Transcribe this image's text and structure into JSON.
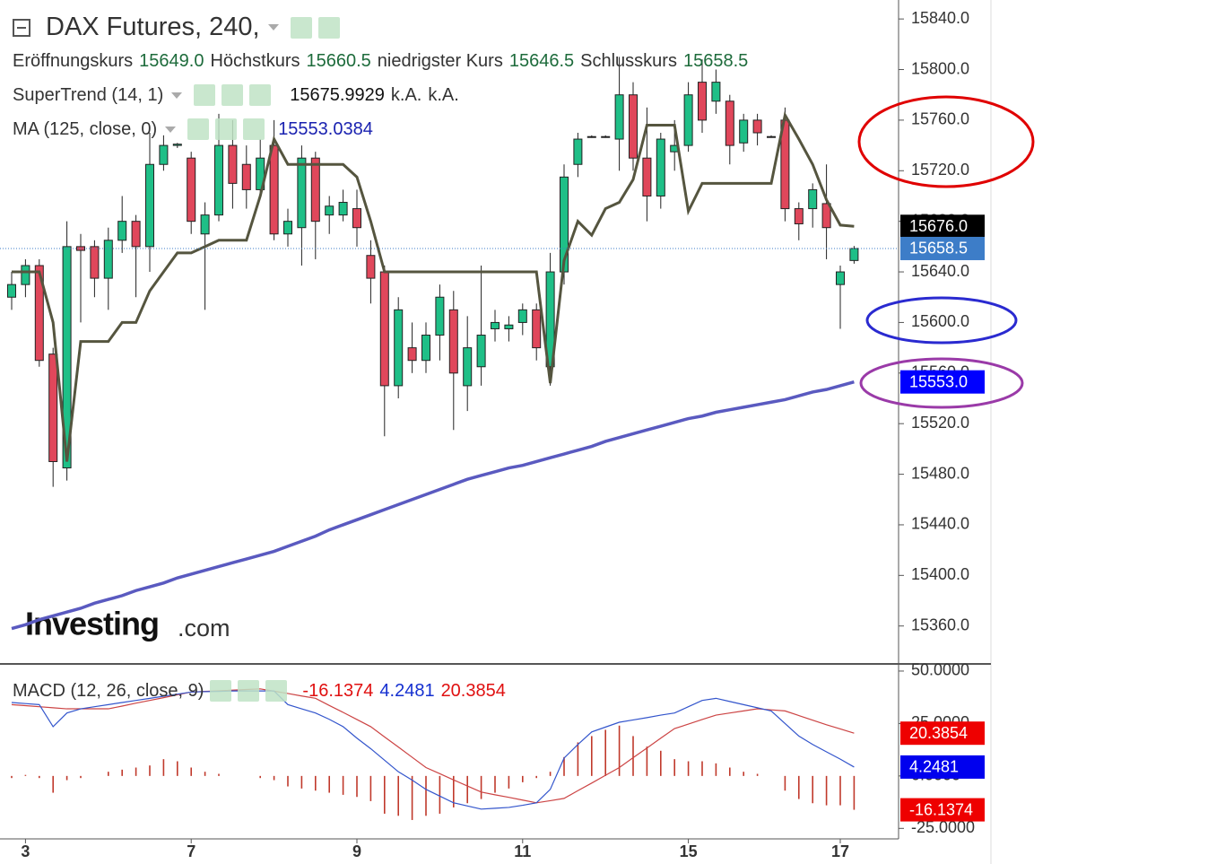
{
  "chart_data": [
    {
      "type": "candlestick",
      "title": "DAX Futures, 240,",
      "ohlc_legend": [
        {
          "label": "Eröffnungskurs",
          "value": "15649.0"
        },
        {
          "label": "Höchstkurs",
          "value": "15660.5"
        },
        {
          "label": "niedrigster Kurs",
          "value": "15646.5"
        },
        {
          "label": "Schlusskurs",
          "value": "15658.5"
        }
      ],
      "logo": [
        "Investing",
        ".com"
      ],
      "categories": [
        null,
        "3",
        null,
        null,
        null,
        null,
        null,
        null,
        null,
        null,
        null,
        null,
        null,
        "7",
        null,
        null,
        null,
        null,
        null,
        null,
        null,
        null,
        null,
        null,
        null,
        "9",
        null,
        null,
        null,
        null,
        null,
        null,
        null,
        null,
        null,
        null,
        null,
        "11",
        null,
        null,
        null,
        null,
        null,
        null,
        null,
        null,
        null,
        null,
        null,
        "15",
        null,
        null,
        null,
        null,
        null,
        null,
        null,
        null,
        null,
        null,
        "17",
        null
      ],
      "ohlc": {
        "up_color": "#1fbf87",
        "down_color": "#e0475b",
        "open": [
          15620,
          15630,
          15645,
          15575,
          15485,
          15660,
          15660,
          15635,
          15665,
          15680,
          15660,
          15725,
          15740,
          15730,
          15670,
          15685,
          15740,
          15725,
          15705,
          15740,
          15670,
          15675,
          15730,
          15685,
          15685,
          15690,
          15653,
          15640,
          15550,
          15580,
          15570,
          15590,
          15610,
          15550,
          15565,
          15595,
          15595,
          15600,
          15610,
          15565,
          15640,
          15725,
          15747,
          15747,
          15745,
          15780,
          15730,
          15700,
          15735,
          15740,
          15790,
          15775,
          15775,
          15742,
          15760,
          15747,
          15760,
          15690,
          15690,
          15694,
          15630,
          15649
        ],
        "high": [
          15640,
          15650,
          15650,
          15580,
          15680,
          15670,
          15665,
          15675,
          15700,
          15685,
          15750,
          15748,
          15742,
          15735,
          15695,
          15765,
          15760,
          15740,
          15745,
          15760,
          15690,
          15740,
          15735,
          15700,
          15705,
          15705,
          15665,
          15645,
          15620,
          15600,
          15600,
          15630,
          15625,
          15605,
          15645,
          15610,
          15605,
          15615,
          15615,
          15655,
          15725,
          15750,
          15748,
          15748,
          15810,
          15790,
          15770,
          15750,
          15760,
          15790,
          15808,
          15800,
          15780,
          15765,
          15765,
          15748,
          15770,
          15695,
          15710,
          15725,
          15645,
          15660.5
        ],
        "low": [
          15610,
          15620,
          15565,
          15470,
          15475,
          15600,
          15620,
          15610,
          15655,
          15620,
          15640,
          15720,
          15738,
          15670,
          15610,
          15680,
          15690,
          15690,
          15700,
          15665,
          15660,
          15645,
          15650,
          15670,
          15680,
          15660,
          15615,
          15510,
          15540,
          15560,
          15560,
          15570,
          15515,
          15530,
          15550,
          15585,
          15585,
          15590,
          15570,
          15550,
          15630,
          15715,
          15746,
          15746,
          15720,
          15720,
          15680,
          15690,
          15720,
          15735,
          15750,
          15765,
          15725,
          15735,
          15740,
          15746,
          15680,
          15665,
          15675,
          15650,
          15595,
          15646.5
        ],
        "close": [
          15630,
          15645,
          15570,
          15490,
          15660,
          15657,
          15635,
          15665,
          15680,
          15660,
          15725,
          15740,
          15741,
          15680,
          15685,
          15740,
          15710,
          15705,
          15730,
          15670,
          15680,
          15730,
          15680,
          15692,
          15695,
          15675,
          15635,
          15550,
          15610,
          15570,
          15590,
          15620,
          15560,
          15580,
          15590,
          15600,
          15598,
          15610,
          15580,
          15640,
          15715,
          15745,
          15747,
          15747,
          15780,
          15730,
          15700,
          15745,
          15740,
          15780,
          15760,
          15790,
          15740,
          15760,
          15750,
          15747,
          15690,
          15678,
          15705,
          15675,
          15640,
          15658.5
        ]
      },
      "supertrend": {
        "label": "SuperTrend (14, 1)",
        "value": "15675.9929",
        "extra": [
          "k.A.",
          "k.A."
        ],
        "color": "#55553f",
        "values": [
          15640,
          15640,
          15640,
          15600,
          15490,
          15585,
          15585,
          15585,
          15600,
          15600,
          15625,
          15640,
          15655,
          15655,
          15660,
          15665,
          15665,
          15665,
          15700,
          15745,
          15725,
          15725,
          15725,
          15725,
          15725,
          15715,
          15680,
          15640,
          15640,
          15640,
          15640,
          15640,
          15640,
          15640,
          15640,
          15640,
          15640,
          15640,
          15640,
          15552,
          15649,
          15680,
          15669,
          15690,
          15695,
          15713,
          15756,
          15756,
          15756,
          15688,
          15710,
          15710,
          15710,
          15710,
          15710,
          15710,
          15764,
          15745,
          15725,
          15697,
          15677,
          15676
        ]
      },
      "ma": {
        "label": "MA (125, close, 0)",
        "value": "15553.0384",
        "color": "#5a5ac0",
        "values": [
          15358,
          15361,
          15365,
          15368,
          15371,
          15374,
          15378,
          15381,
          15384,
          15388,
          15391,
          15394,
          15398,
          15401,
          15404,
          15407,
          15410,
          15413,
          15416,
          15419,
          15423,
          15427,
          15431,
          15436,
          15440,
          15444,
          15448,
          15452,
          15456,
          15460,
          15464,
          15468,
          15472,
          15476,
          15479,
          15482,
          15485,
          15487,
          15490,
          15493,
          15496,
          15499,
          15502,
          15506,
          15509,
          15512,
          15515,
          15518,
          15521,
          15524,
          15526,
          15529,
          15531,
          15533,
          15535,
          15537,
          15539,
          15542,
          15545,
          15547,
          15550,
          15553
        ]
      },
      "ylim": [
        15330,
        15855
      ],
      "yticks": [
        {
          "value": 15360,
          "label": "15360.0"
        },
        {
          "value": 15400,
          "label": "15400.0"
        },
        {
          "value": 15440,
          "label": "15440.0"
        },
        {
          "value": 15480,
          "label": "15480.0"
        },
        {
          "value": 15520,
          "label": "15520.0"
        },
        {
          "value": 15560,
          "label": "15560.0"
        },
        {
          "value": 15600,
          "label": "15600.0"
        },
        {
          "value": 15640,
          "label": "15640.0"
        },
        {
          "value": 15680,
          "label": "15680.0"
        },
        {
          "value": 15720,
          "label": "15720.0"
        },
        {
          "value": 15760,
          "label": "15760.0"
        },
        {
          "value": 15800,
          "label": "15800.0"
        },
        {
          "value": 15840,
          "label": "15840.0"
        }
      ],
      "badges": [
        {
          "value": 15676,
          "label": "15676.0",
          "color": "#000000"
        },
        {
          "value": 15658.5,
          "label": "15658.5",
          "color": "#3d7dc8",
          "dotted_line": true
        },
        {
          "value": 15553,
          "label": "15553.0",
          "color": "#0000ff"
        }
      ]
    },
    {
      "type": "macd",
      "label": "MACD (12, 26, close, 9)",
      "histogram": {
        "value_label": "-16.1374",
        "color": "#c0392b",
        "values": [
          -1,
          0.5,
          -1,
          -8,
          -2,
          -1,
          0,
          2,
          3,
          4,
          5,
          8,
          7,
          4,
          2,
          1,
          0,
          0,
          -1,
          -2,
          -5,
          -6,
          -7,
          -8,
          -9,
          -10,
          -12,
          -18,
          -19,
          -21,
          -19,
          -18,
          -15,
          -13,
          -11,
          -8,
          -6,
          -3,
          -1,
          2,
          9,
          16,
          19,
          22,
          24,
          19,
          14,
          12,
          8,
          7,
          7,
          6,
          4,
          2,
          1,
          0,
          -7,
          -11,
          -13,
          -14,
          -14,
          -16.1374
        ]
      },
      "macd": {
        "value_label": "4.2481",
        "color": "#3355cc",
        "values": [
          35,
          34.5,
          34,
          23.5,
          30,
          32,
          33,
          34,
          35,
          36,
          37,
          38,
          39,
          40,
          40.2,
          40.3,
          40.5,
          40.5,
          40.5,
          40.5,
          34,
          32,
          30,
          27,
          23.5,
          18,
          13,
          7.5,
          2,
          -2,
          -6.4,
          -9.6,
          -12.8,
          -14.3,
          -15.8,
          -15.4,
          -15,
          -14,
          -12.8,
          -6.4,
          8.5,
          15,
          21,
          23.3,
          25.6,
          26.7,
          27.8,
          29,
          30,
          33,
          36,
          37,
          35.5,
          34,
          32.5,
          31,
          25,
          19,
          15,
          11.5,
          8,
          4.2481
        ]
      },
      "signal": {
        "value_label": "20.3854",
        "color": "#cc4444",
        "values": [
          34,
          33.5,
          33,
          32.5,
          32,
          32,
          32,
          32,
          33.3,
          34.7,
          36,
          37.3,
          38.7,
          40,
          40.3,
          40.6,
          40.9,
          41.2,
          41.5,
          40.4,
          39.3,
          38.1,
          37,
          33.6,
          30.3,
          26.9,
          23.5,
          18.6,
          13.8,
          8.9,
          4,
          1.1,
          -1.9,
          -4.8,
          -7.7,
          -9,
          -10.2,
          -11.5,
          -12.8,
          -11.8,
          -10.7,
          -7,
          -3.4,
          0.3,
          4,
          8.7,
          13.3,
          18,
          22.6,
          24.7,
          26.9,
          29,
          30,
          31,
          32,
          31.5,
          31,
          28.8,
          26.6,
          24.4,
          22.4,
          20.3854
        ]
      },
      "ylim": [
        -30,
        53.4
      ],
      "yticks": [
        {
          "value": -25,
          "label": "-25.0000"
        },
        {
          "value": 0,
          "label": "0.0000"
        },
        {
          "value": 25,
          "label": "25.0000"
        },
        {
          "value": 50,
          "label": "50.0000"
        }
      ],
      "badges": [
        {
          "value": 20.3854,
          "label": "20.3854",
          "color": "#ee0000"
        },
        {
          "value": 4.2481,
          "label": "4.2481",
          "color": "#0000ee"
        },
        {
          "value": -16.1374,
          "label": "-16.1374",
          "color": "#ee0000"
        }
      ]
    }
  ]
}
